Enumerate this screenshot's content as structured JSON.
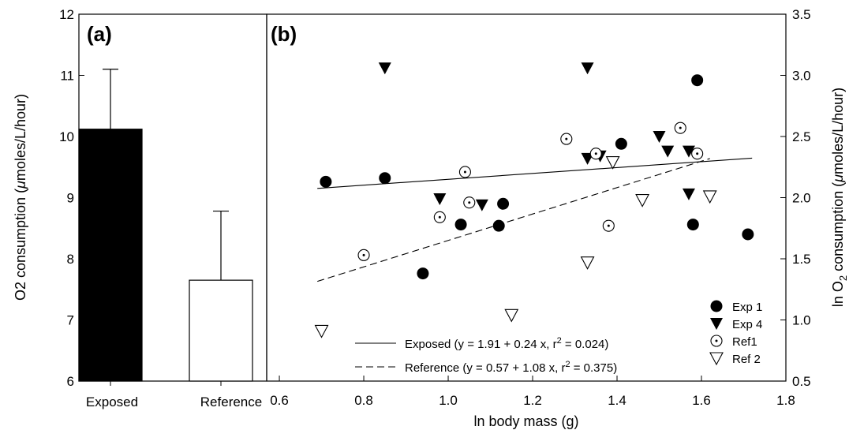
{
  "chart_data": [
    {
      "panel": "(a)",
      "type": "bar",
      "ylabel": "O2 consumption (μmoles/L/hour)",
      "ylim": [
        6,
        12
      ],
      "yticks": [
        6,
        7,
        8,
        9,
        10,
        11,
        12
      ],
      "categories": [
        "Exposed",
        "Reference"
      ],
      "values": [
        10.12,
        7.65
      ],
      "error_upper": [
        11.1,
        8.78
      ],
      "colors": [
        "#000000",
        "#ffffff"
      ]
    },
    {
      "panel": "(b)",
      "type": "scatter",
      "xlabel": "ln body mass (g)",
      "ylabel": "ln O2 consumption (μmoles/L/hour)",
      "xlim": [
        0.57,
        1.8
      ],
      "ylim": [
        0.5,
        3.5
      ],
      "xticks": [
        0.6,
        0.8,
        1.0,
        1.2,
        1.4,
        1.6,
        1.8
      ],
      "yticks": [
        0.5,
        1.0,
        1.5,
        2.0,
        2.5,
        3.0,
        3.5
      ],
      "series": [
        {
          "name": "Exp 1",
          "marker": "filled-circle",
          "points": [
            [
              0.71,
              2.13
            ],
            [
              0.85,
              2.16
            ],
            [
              0.94,
              1.38
            ],
            [
              1.03,
              1.78
            ],
            [
              1.12,
              1.77
            ],
            [
              1.13,
              1.95
            ],
            [
              1.41,
              2.44
            ],
            [
              1.58,
              1.78
            ],
            [
              1.59,
              2.96
            ],
            [
              1.71,
              1.7
            ]
          ]
        },
        {
          "name": "Exp 4",
          "marker": "filled-triangle-down",
          "points": [
            [
              0.85,
              3.06
            ],
            [
              0.98,
              1.99
            ],
            [
              1.08,
              1.94
            ],
            [
              1.33,
              2.32
            ],
            [
              1.33,
              3.06
            ],
            [
              1.36,
              2.34
            ],
            [
              1.5,
              2.5
            ],
            [
              1.52,
              2.38
            ],
            [
              1.57,
              2.38
            ],
            [
              1.57,
              2.03
            ]
          ]
        },
        {
          "name": "Ref1",
          "marker": "dotted-circle",
          "points": [
            [
              0.8,
              1.53
            ],
            [
              0.98,
              1.84
            ],
            [
              1.04,
              2.21
            ],
            [
              1.05,
              1.96
            ],
            [
              1.28,
              2.48
            ],
            [
              1.35,
              2.36
            ],
            [
              1.38,
              1.77
            ],
            [
              1.55,
              2.57
            ],
            [
              1.59,
              2.36
            ]
          ]
        },
        {
          "name": "Ref 2",
          "marker": "open-triangle-down",
          "points": [
            [
              0.7,
              0.91
            ],
            [
              1.15,
              1.04
            ],
            [
              1.33,
              1.47
            ],
            [
              1.39,
              2.29
            ],
            [
              1.46,
              1.98
            ],
            [
              1.62,
              2.01
            ]
          ]
        }
      ],
      "fits": [
        {
          "name": "Exposed (y = 1.91 + 0.24 x, r",
          "sup": "2",
          "tail": " = 0.024)",
          "style": "solid",
          "intercept": 1.91,
          "slope": 0.24,
          "x_range": [
            0.69,
            1.72
          ]
        },
        {
          "name": "Reference (y = 0.57 + 1.08 x, r",
          "sup": "2",
          "tail": " = 0.375)",
          "style": "dashed",
          "intercept": 0.57,
          "slope": 1.08,
          "x_range": [
            0.69,
            1.62
          ]
        }
      ]
    }
  ],
  "panel_a": {
    "letter": "(a)",
    "ylabel": "O2 consumption (",
    "ylabel_mu": "μ",
    "ylabel_rest": "moles/L/hour)",
    "categories": [
      "Exposed",
      "Reference"
    ]
  },
  "panel_b": {
    "letter": "(b)",
    "xlabel": "ln body mass (g)",
    "ylabel_pre": "ln O",
    "ylabel_sub": "2",
    "ylabel_mid": " consumption (",
    "ylabel_mu": "μ",
    "ylabel_rest": "moles/L/hour)"
  }
}
